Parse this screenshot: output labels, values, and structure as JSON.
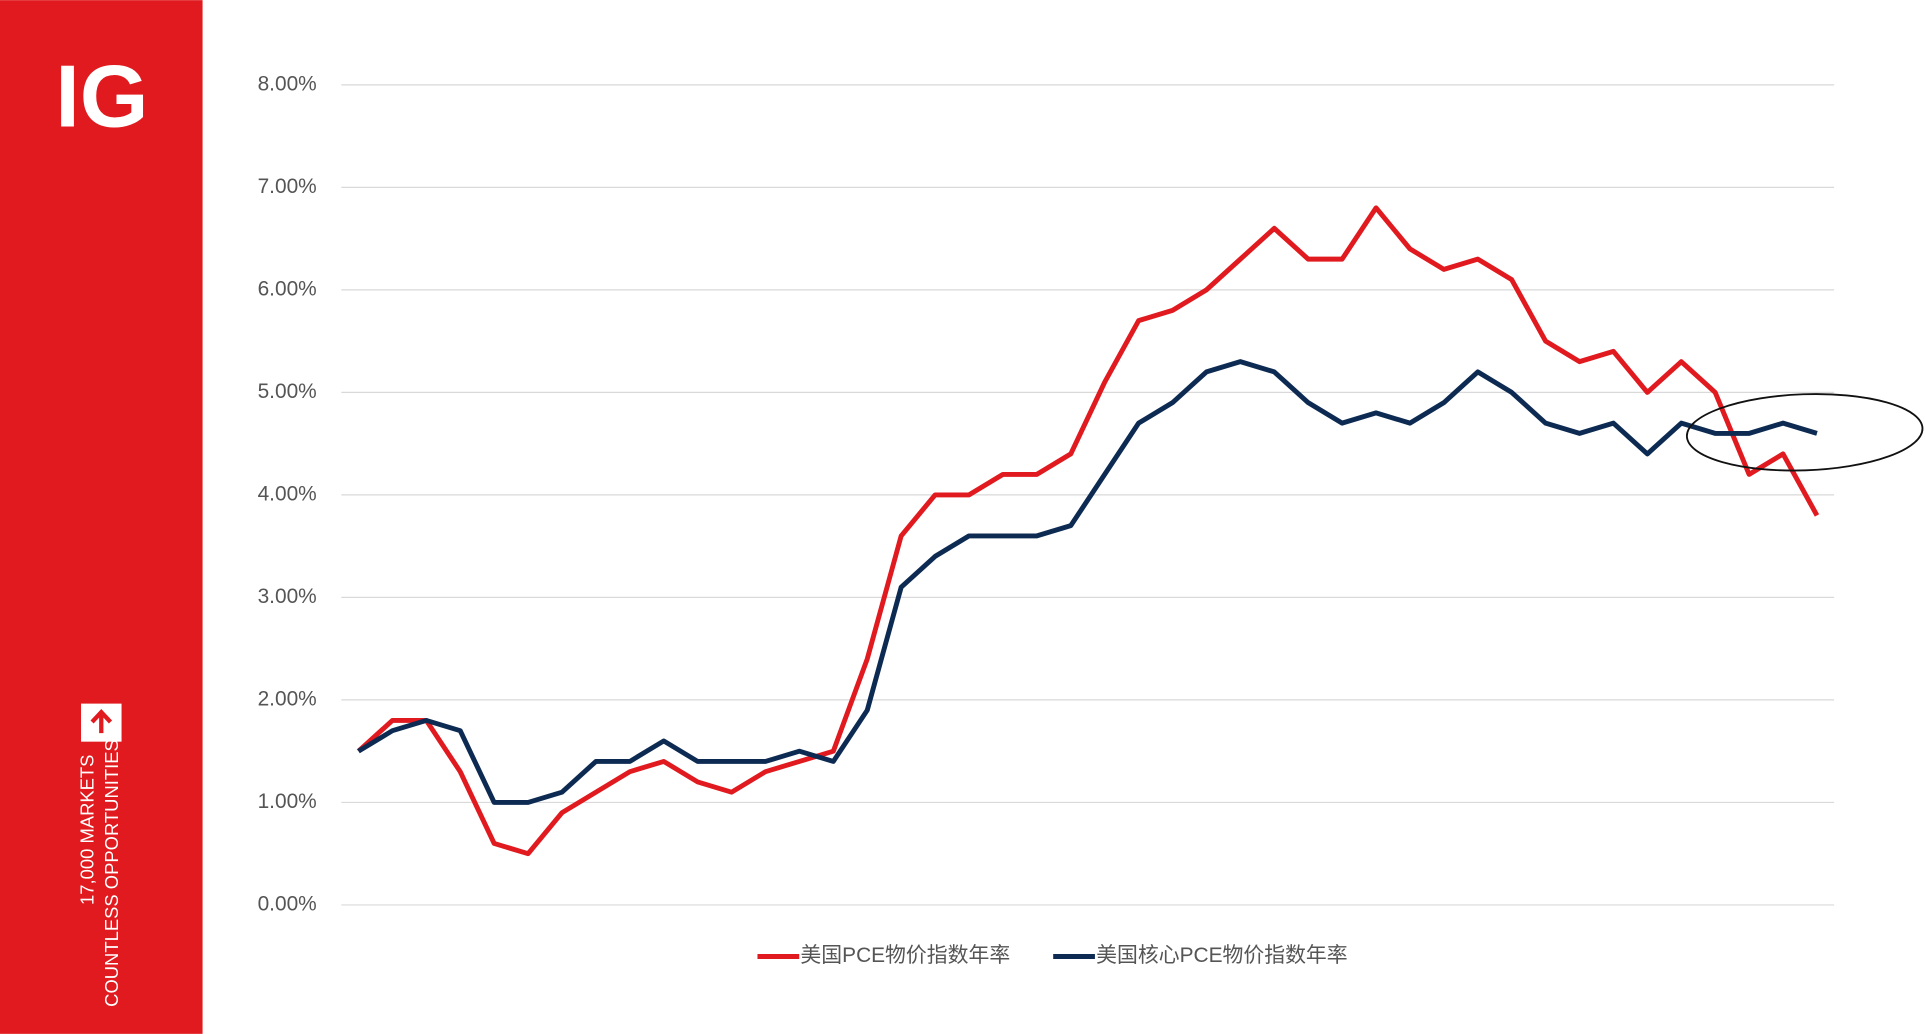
{
  "sidebar": {
    "logo": "IG",
    "tagline_1": "17,000 MARKETS",
    "tagline_2": "COUNTLESS OPPORTUNITIES"
  },
  "chart_data": {
    "type": "line",
    "ylim": [
      0,
      8
    ],
    "yticks": [
      {
        "value": 0,
        "label": "0.00%"
      },
      {
        "value": 1,
        "label": "1.00%"
      },
      {
        "value": 2,
        "label": "2.00%"
      },
      {
        "value": 3,
        "label": "3.00%"
      },
      {
        "value": 4,
        "label": "4.00%"
      },
      {
        "value": 5,
        "label": "5.00%"
      },
      {
        "value": 6,
        "label": "6.00%"
      },
      {
        "value": 7,
        "label": "7.00%"
      },
      {
        "value": 8,
        "label": "8.00%"
      }
    ],
    "grid": true,
    "legend": "bottom",
    "series": [
      {
        "name": "美国PCE物价指数年率",
        "color": "#e01a1f",
        "values": [
          1.5,
          1.8,
          1.8,
          1.3,
          0.6,
          0.5,
          0.9,
          1.1,
          1.3,
          1.4,
          1.2,
          1.1,
          1.3,
          1.4,
          1.5,
          2.4,
          3.6,
          4.0,
          4.0,
          4.2,
          4.2,
          4.4,
          5.1,
          5.7,
          5.8,
          6.0,
          6.3,
          6.6,
          6.3,
          6.3,
          6.8,
          6.4,
          6.2,
          6.3,
          6.1,
          5.5,
          5.3,
          5.4,
          5.0,
          5.3,
          5.0,
          4.2,
          4.4,
          3.8
        ]
      },
      {
        "name": "美国核心PCE物价指数年率",
        "color": "#0d2b52",
        "values": [
          1.5,
          1.7,
          1.8,
          1.7,
          1.0,
          1.0,
          1.1,
          1.4,
          1.4,
          1.6,
          1.4,
          1.4,
          1.4,
          1.5,
          1.4,
          1.9,
          3.1,
          3.4,
          3.6,
          3.6,
          3.6,
          3.7,
          4.2,
          4.7,
          4.9,
          5.2,
          5.3,
          5.2,
          4.9,
          4.7,
          4.8,
          4.7,
          4.9,
          5.2,
          5.0,
          4.7,
          4.6,
          4.7,
          4.4,
          4.7,
          4.6,
          4.6,
          4.7,
          4.6
        ]
      }
    ]
  }
}
